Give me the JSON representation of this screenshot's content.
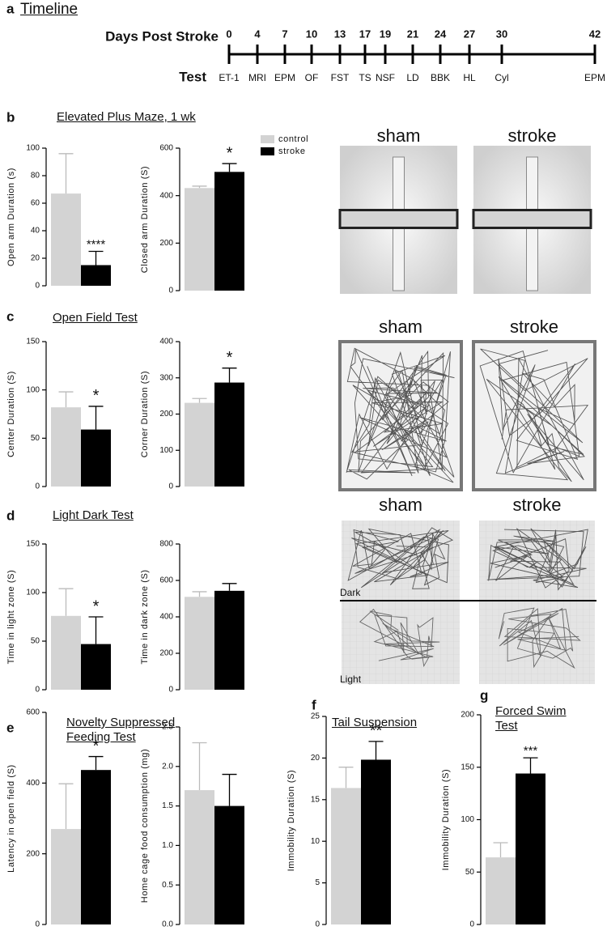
{
  "panels": [
    {
      "letter": "a",
      "title": "Timeline"
    },
    {
      "letter": "b",
      "title": "Elevated Plus Maze, 1 wk"
    },
    {
      "letter": "c",
      "title": "Open Field Test"
    },
    {
      "letter": "d",
      "title": "Light Dark Test"
    },
    {
      "letter": "e",
      "title": "Novelty Suppressed Feeding Test"
    },
    {
      "letter": "f",
      "title": "Tail Suspension"
    },
    {
      "letter": "g",
      "title": "Forced Swim Test"
    }
  ],
  "timeline": {
    "axis_label": "Days Post Stroke",
    "row_label": "Test",
    "days": [
      0,
      4,
      7,
      10,
      13,
      17,
      19,
      21,
      24,
      27,
      30,
      42
    ],
    "tests": [
      "ET-1",
      "MRI",
      "EPM",
      "OF",
      "FST",
      "TS",
      "NSF",
      "LD",
      "BBK",
      "HL",
      "Cyl",
      "EPM"
    ]
  },
  "images": [
    {
      "labels": [
        "sham",
        "stroke"
      ]
    },
    {
      "labels": [
        "sham",
        "stroke"
      ]
    },
    {
      "labels": [
        "sham",
        "stroke"
      ],
      "zones": [
        "Dark",
        "Light"
      ]
    }
  ],
  "chart_data": [
    {
      "type": "bar",
      "y_label": "Open arm Duration (s)",
      "ylim": [
        0,
        100
      ],
      "yticks": [
        0,
        20,
        40,
        60,
        80,
        100
      ],
      "annotation": "****",
      "series": [
        {
          "color": "#d3d3d3",
          "values": [
            67
          ],
          "errors": [
            29
          ]
        },
        {
          "color": "#000000",
          "values": [
            15
          ],
          "errors": [
            10
          ]
        }
      ]
    },
    {
      "type": "bar",
      "y_label": "Closed arm Duration (S)",
      "ylim": [
        0,
        600
      ],
      "yticks": [
        0,
        200,
        400,
        600
      ],
      "annotation": "*",
      "legend": true,
      "series": [
        {
          "name": "control",
          "color": "#d3d3d3",
          "values": [
            432
          ],
          "errors": [
            8
          ]
        },
        {
          "name": "stroke",
          "color": "#000000",
          "values": [
            500
          ],
          "errors": [
            35
          ]
        }
      ]
    },
    {
      "type": "bar",
      "y_label": "Center Duration (S)",
      "ylim": [
        0,
        150
      ],
      "yticks": [
        0,
        50,
        100,
        150
      ],
      "annotation": "*",
      "series": [
        {
          "color": "#d3d3d3",
          "values": [
            82
          ],
          "errors": [
            16
          ]
        },
        {
          "color": "#000000",
          "values": [
            59
          ],
          "errors": [
            24
          ]
        }
      ]
    },
    {
      "type": "bar",
      "y_label": "Corner Duration (S)",
      "ylim": [
        0,
        400
      ],
      "yticks": [
        0,
        100,
        200,
        300,
        400
      ],
      "annotation": "*",
      "series": [
        {
          "color": "#d3d3d3",
          "values": [
            231
          ],
          "errors": [
            12
          ]
        },
        {
          "color": "#000000",
          "values": [
            287
          ],
          "errors": [
            40
          ]
        }
      ]
    },
    {
      "type": "bar",
      "y_label": "Time in light zone (S)",
      "ylim": [
        0,
        150
      ],
      "yticks": [
        0,
        50,
        100,
        150
      ],
      "annotation": "*",
      "series": [
        {
          "color": "#d3d3d3",
          "values": [
            76
          ],
          "errors": [
            28
          ]
        },
        {
          "color": "#000000",
          "values": [
            47
          ],
          "errors": [
            28
          ]
        }
      ]
    },
    {
      "type": "bar",
      "y_label": "Time in dark zone (S)",
      "ylim": [
        0,
        800
      ],
      "yticks": [
        0,
        200,
        400,
        600,
        800
      ],
      "series": [
        {
          "color": "#d3d3d3",
          "values": [
            510
          ],
          "errors": [
            28
          ]
        },
        {
          "color": "#000000",
          "values": [
            543
          ],
          "errors": [
            40
          ]
        }
      ]
    },
    {
      "type": "bar",
      "y_label": "Latency in open field (S)",
      "ylim": [
        0,
        600
      ],
      "yticks": [
        0,
        200,
        400,
        600
      ],
      "annotation": "*",
      "series": [
        {
          "color": "#d3d3d3",
          "values": [
            270
          ],
          "errors": [
            128
          ]
        },
        {
          "color": "#000000",
          "values": [
            437
          ],
          "errors": [
            38
          ]
        }
      ]
    },
    {
      "type": "bar",
      "y_label": "Home cage food consumption (mg)",
      "ylim": [
        0,
        2.5
      ],
      "yticks": [
        {
          "value": 0,
          "label": "0.0"
        },
        0.5,
        {
          "value": 1,
          "label": "1.0"
        },
        1.5,
        {
          "value": 2,
          "label": "2.0"
        },
        2.5
      ],
      "series": [
        {
          "color": "#d3d3d3",
          "values": [
            1.7
          ],
          "errors": [
            0.6
          ]
        },
        {
          "color": "#000000",
          "values": [
            1.5
          ],
          "errors": [
            0.4
          ]
        }
      ]
    },
    {
      "type": "bar",
      "y_label": "Immobility Duration (S)",
      "ylim": [
        0,
        25
      ],
      "yticks": [
        0,
        5,
        10,
        15,
        20,
        25
      ],
      "annotation": "**",
      "series": [
        {
          "color": "#d3d3d3",
          "values": [
            16.4
          ],
          "errors": [
            2.5
          ]
        },
        {
          "color": "#000000",
          "values": [
            19.8
          ],
          "errors": [
            2.2
          ]
        }
      ]
    },
    {
      "type": "bar",
      "y_label": "Immobility Duration (S)",
      "ylim": [
        0,
        200
      ],
      "yticks": [
        0,
        50,
        100,
        150,
        200
      ],
      "annotation": "***",
      "series": [
        {
          "color": "#d3d3d3",
          "values": [
            64
          ],
          "errors": [
            14
          ]
        },
        {
          "color": "#000000",
          "values": [
            144
          ],
          "errors": [
            15
          ]
        }
      ]
    }
  ]
}
